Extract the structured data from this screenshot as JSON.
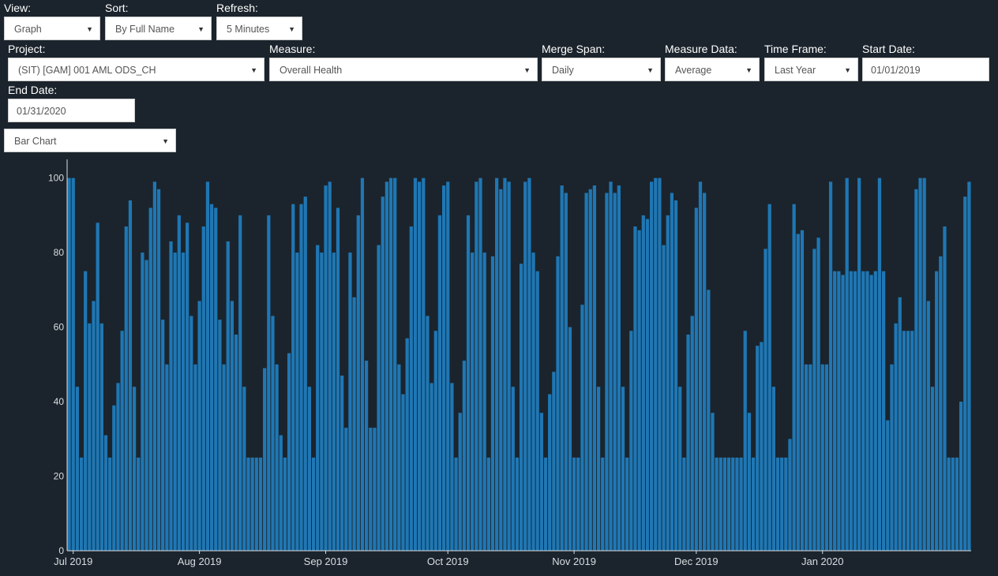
{
  "controls": {
    "view": {
      "label": "View:",
      "value": "Graph"
    },
    "sort": {
      "label": "Sort:",
      "value": "By Full Name"
    },
    "refresh": {
      "label": "Refresh:",
      "value": "5 Minutes"
    },
    "project": {
      "label": "Project:",
      "value": "(SIT) [GAM] 001 AML ODS_CH"
    },
    "measure": {
      "label": "Measure:",
      "value": "Overall Health"
    },
    "merge_span": {
      "label": "Merge Span:",
      "value": "Daily"
    },
    "measure_data": {
      "label": "Measure Data:",
      "value": "Average"
    },
    "time_frame": {
      "label": "Time Frame:",
      "value": "Last Year"
    },
    "start_date": {
      "label": "Start Date:",
      "value": "01/01/2019"
    },
    "end_date": {
      "label": "End Date:",
      "value": "01/31/2020"
    },
    "chart_type": {
      "value": "Bar Chart"
    }
  },
  "chart_data": {
    "type": "bar",
    "title": "",
    "xlabel": "",
    "ylabel": "",
    "ylim": [
      0,
      105
    ],
    "yticks": [
      0,
      20,
      40,
      60,
      80,
      100
    ],
    "x_start": "2019-06-30",
    "x_ticks": [
      {
        "date": "2019-07-01",
        "label": "Jul 2019"
      },
      {
        "date": "2019-08-01",
        "label": "Aug 2019"
      },
      {
        "date": "2019-09-01",
        "label": "Sep 2019"
      },
      {
        "date": "2019-10-01",
        "label": "Oct 2019"
      },
      {
        "date": "2019-11-01",
        "label": "Nov 2019"
      },
      {
        "date": "2019-12-01",
        "label": "Dec 2019"
      },
      {
        "date": "2020-01-01",
        "label": "Jan 2020"
      }
    ],
    "bar_color": "#1f77b4",
    "grid": false,
    "values": [
      100,
      100,
      44,
      25,
      75,
      61,
      67,
      88,
      61,
      31,
      25,
      39,
      45,
      59,
      87,
      94,
      44,
      25,
      80,
      78,
      92,
      99,
      97,
      62,
      50,
      83,
      80,
      90,
      80,
      88,
      63,
      50,
      67,
      87,
      99,
      93,
      92,
      62,
      50,
      83,
      67,
      58,
      90,
      44,
      25,
      25,
      25,
      25,
      49,
      90,
      63,
      50,
      31,
      25,
      53,
      93,
      80,
      93,
      95,
      44,
      25,
      82,
      80,
      98,
      99,
      80,
      92,
      47,
      33,
      80,
      68,
      90,
      100,
      51,
      33,
      33,
      82,
      95,
      99,
      100,
      100,
      50,
      42,
      57,
      87,
      100,
      99,
      100,
      63,
      45,
      59,
      90,
      98,
      99,
      45,
      25,
      37,
      51,
      90,
      80,
      99,
      100,
      80,
      25,
      79,
      100,
      97,
      100,
      99,
      44,
      25,
      77,
      99,
      100,
      80,
      75,
      37,
      25,
      42,
      48,
      79,
      98,
      96,
      60,
      25,
      25,
      66,
      96,
      97,
      98,
      44,
      25,
      96,
      99,
      96,
      98,
      44,
      25,
      59,
      87,
      86,
      90,
      89,
      99,
      100,
      100,
      82,
      90,
      96,
      94,
      44,
      25,
      58,
      63,
      92,
      99,
      96,
      70,
      37,
      25,
      25,
      25,
      25,
      25,
      25,
      25,
      59,
      37,
      25,
      55,
      56,
      81,
      93,
      44,
      25,
      25,
      25,
      30,
      93,
      85,
      86,
      50,
      50,
      81,
      84,
      50,
      50,
      99,
      75,
      75,
      74,
      100,
      75,
      75,
      100,
      75,
      75,
      74,
      75,
      100,
      75,
      35,
      50,
      61,
      68,
      59,
      59,
      59,
      97,
      100,
      100,
      67,
      44,
      75,
      79,
      87,
      25,
      25,
      25,
      40,
      95,
      99
    ]
  }
}
